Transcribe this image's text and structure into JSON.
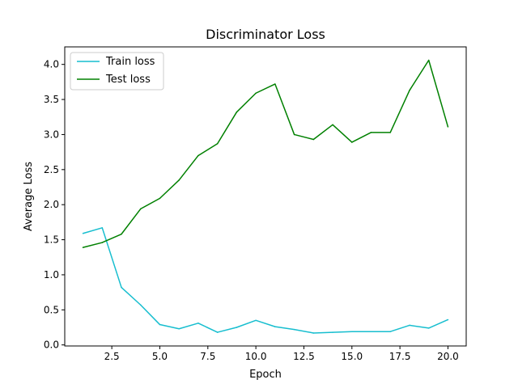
{
  "chart_data": {
    "type": "line",
    "title": "Discriminator Loss",
    "xlabel": "Epoch",
    "ylabel": "Average Loss",
    "xlim": [
      0.05,
      20.95
    ],
    "ylim": [
      -0.015,
      4.25
    ],
    "xticks": [
      2.5,
      5.0,
      7.5,
      10.0,
      12.5,
      15.0,
      17.5,
      20.0
    ],
    "xtick_labels": [
      "2.5",
      "5.0",
      "7.5",
      "10.0",
      "12.5",
      "15.0",
      "17.5",
      "20.0"
    ],
    "yticks": [
      0.0,
      0.5,
      1.0,
      1.5,
      2.0,
      2.5,
      3.0,
      3.5,
      4.0
    ],
    "ytick_labels": [
      "0.0",
      "0.5",
      "1.0",
      "1.5",
      "2.0",
      "2.5",
      "3.0",
      "3.5",
      "4.0"
    ],
    "grid": false,
    "legend_position": "top-left",
    "x": [
      1,
      2,
      3,
      4,
      5,
      6,
      7,
      8,
      9,
      10,
      11,
      12,
      13,
      14,
      15,
      16,
      17,
      18,
      19,
      20
    ],
    "series": [
      {
        "name": "Train loss",
        "color": "#17becf",
        "values": [
          1.59,
          1.67,
          0.82,
          0.57,
          0.29,
          0.23,
          0.31,
          0.18,
          0.25,
          0.35,
          0.26,
          0.22,
          0.17,
          0.18,
          0.19,
          0.19,
          0.19,
          0.28,
          0.24,
          0.36
        ]
      },
      {
        "name": "Test loss",
        "color": "#008000",
        "values": [
          1.39,
          1.46,
          1.58,
          1.94,
          2.09,
          2.35,
          2.7,
          2.87,
          3.32,
          3.59,
          3.72,
          3.0,
          2.93,
          3.14,
          2.89,
          3.03,
          3.03,
          3.63,
          4.06,
          3.11
        ]
      }
    ]
  }
}
